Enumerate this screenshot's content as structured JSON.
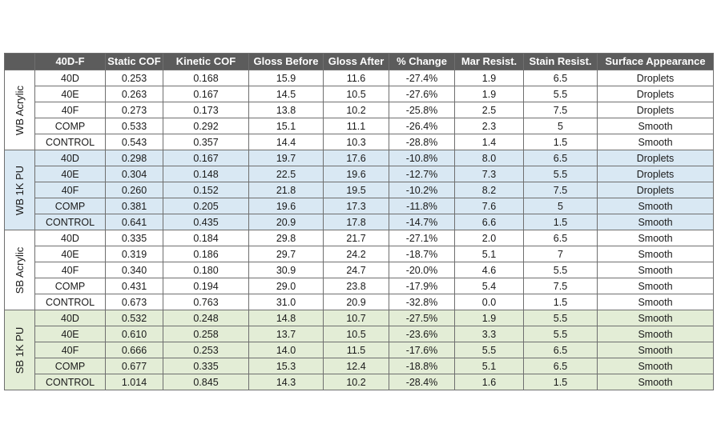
{
  "table": {
    "headers": [
      "",
      "40D-F",
      "Static COF",
      "Kinetic COF",
      "Gloss Before",
      "Gloss After",
      "% Change",
      "Mar Resist.",
      "Stain Resist.",
      "Surface Appearance"
    ],
    "groups": [
      {
        "name": "WB Acrylic",
        "rows": [
          [
            "40D",
            "0.253",
            "0.168",
            "15.9",
            "11.6",
            "-27.4%",
            "1.9",
            "6.5",
            "Droplets"
          ],
          [
            "40E",
            "0.263",
            "0.167",
            "14.5",
            "10.5",
            "-27.6%",
            "1.9",
            "5.5",
            "Droplets"
          ],
          [
            "40F",
            "0.273",
            "0.173",
            "13.8",
            "10.2",
            "-25.8%",
            "2.5",
            "7.5",
            "Droplets"
          ],
          [
            "COMP",
            "0.533",
            "0.292",
            "15.1",
            "11.1",
            "-26.4%",
            "2.3",
            "5",
            "Smooth"
          ],
          [
            "CONTROL",
            "0.543",
            "0.357",
            "14.4",
            "10.3",
            "-28.8%",
            "1.4",
            "1.5",
            "Smooth"
          ]
        ]
      },
      {
        "name": "WB 1K PU",
        "rows": [
          [
            "40D",
            "0.298",
            "0.167",
            "19.7",
            "17.6",
            "-10.8%",
            "8.0",
            "6.5",
            "Droplets"
          ],
          [
            "40E",
            "0.304",
            "0.148",
            "22.5",
            "19.6",
            "-12.7%",
            "7.3",
            "5.5",
            "Droplets"
          ],
          [
            "40F",
            "0.260",
            "0.152",
            "21.8",
            "19.5",
            "-10.2%",
            "8.2",
            "7.5",
            "Droplets"
          ],
          [
            "COMP",
            "0.381",
            "0.205",
            "19.6",
            "17.3",
            "-11.8%",
            "7.6",
            "5",
            "Smooth"
          ],
          [
            "CONTROL",
            "0.641",
            "0.435",
            "20.9",
            "17.8",
            "-14.7%",
            "6.6",
            "1.5",
            "Smooth"
          ]
        ]
      },
      {
        "name": "SB Acrylic",
        "rows": [
          [
            "40D",
            "0.335",
            "0.184",
            "29.8",
            "21.7",
            "-27.1%",
            "2.0",
            "6.5",
            "Smooth"
          ],
          [
            "40E",
            "0.319",
            "0.186",
            "29.7",
            "24.2",
            "-18.7%",
            "5.1",
            "7",
            "Smooth"
          ],
          [
            "40F",
            "0.340",
            "0.180",
            "30.9",
            "24.7",
            "-20.0%",
            "4.6",
            "5.5",
            "Smooth"
          ],
          [
            "COMP",
            "0.431",
            "0.194",
            "29.0",
            "23.8",
            "-17.9%",
            "5.4",
            "7.5",
            "Smooth"
          ],
          [
            "CONTROL",
            "0.673",
            "0.763",
            "31.0",
            "20.9",
            "-32.8%",
            "0.0",
            "1.5",
            "Smooth"
          ]
        ]
      },
      {
        "name": "SB 1K PU",
        "rows": [
          [
            "40D",
            "0.532",
            "0.248",
            "14.8",
            "10.7",
            "-27.5%",
            "1.9",
            "5.5",
            "Smooth"
          ],
          [
            "40E",
            "0.610",
            "0.258",
            "13.7",
            "10.5",
            "-23.6%",
            "3.3",
            "5.5",
            "Smooth"
          ],
          [
            "40F",
            "0.666",
            "0.253",
            "14.0",
            "11.5",
            "-17.6%",
            "5.5",
            "6.5",
            "Smooth"
          ],
          [
            "COMP",
            "0.677",
            "0.335",
            "15.3",
            "12.4",
            "-18.8%",
            "5.1",
            "6.5",
            "Smooth"
          ],
          [
            "CONTROL",
            "1.014",
            "0.845",
            "14.3",
            "10.2",
            "-28.4%",
            "1.6",
            "1.5",
            "Smooth"
          ]
        ]
      }
    ]
  },
  "colors": {
    "header_bg": "#5c5c5c",
    "group_wb_1k_pu_bg": "#d9e8f3",
    "group_sb_1k_pu_bg": "#e3edd6",
    "group_plain_bg": "#ffffff"
  }
}
